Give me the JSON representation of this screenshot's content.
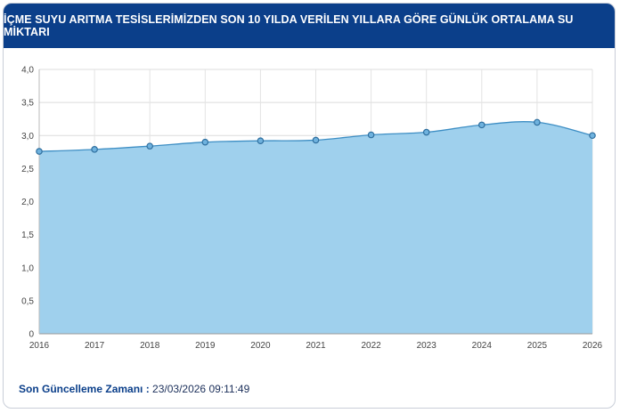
{
  "header": {
    "title": "İÇME SUYU ARITMA TESİSLERİMİZDEN SON 10 YILDA VERİLEN YILLARA GÖRE GÜNLÜK ORTALAMA SU MİKTARI"
  },
  "footer": {
    "label": "Son Güncelleme Zamanı :",
    "value": "23/03/2026 09:11:49"
  },
  "colors": {
    "header_bg": "#0b3f8a",
    "area_fill": "#9fd0ed",
    "line": "#3d8ec4",
    "marker": "#3d8ec4"
  },
  "chart_data": {
    "type": "area",
    "title": "İÇME SUYU ARITMA TESİSLERİMİZDEN SON 10 YILDA VERİLEN YILLARA GÖRE GÜNLÜK ORTALAMA SU MİKTARI",
    "xlabel": "",
    "ylabel": "",
    "categories": [
      "2016",
      "2017",
      "2018",
      "2019",
      "2020",
      "2021",
      "2022",
      "2023",
      "2024",
      "2025",
      "2026"
    ],
    "values": [
      2.76,
      2.79,
      2.84,
      2.9,
      2.92,
      2.93,
      3.01,
      3.05,
      3.16,
      3.2,
      3.0
    ],
    "ylim": [
      0,
      4
    ],
    "yticks": [
      "0",
      "0,5",
      "1,0",
      "1,5",
      "2,0",
      "2,5",
      "3,0",
      "3,5",
      "4,0"
    ],
    "grid": true,
    "legend": "none"
  }
}
